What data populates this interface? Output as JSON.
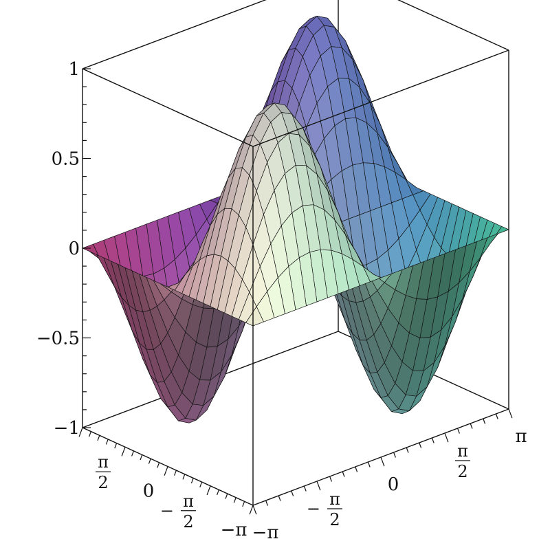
{
  "chart_data": {
    "type": "surface3d",
    "function": "z = sin(x) * sin(y)",
    "x_range": [
      -3.14159,
      3.14159
    ],
    "y_range": [
      -3.14159,
      3.14159
    ],
    "zlim": [
      -1,
      1
    ],
    "grid_x": 24,
    "grid_y": 24,
    "z_ticks": [
      {
        "value": 1,
        "label": "1"
      },
      {
        "value": 0.5,
        "label": "0.5"
      },
      {
        "value": 0,
        "label": "0"
      },
      {
        "value": -0.5,
        "label": "−0.5"
      },
      {
        "value": -1,
        "label": "−1"
      }
    ],
    "x_ticks": [
      {
        "value": -3.14159,
        "label": "−π"
      },
      {
        "value": -1.5708,
        "label": "π/2",
        "sign": "−"
      },
      {
        "value": 0,
        "label": "0"
      },
      {
        "value": 1.5708,
        "label": "π/2"
      },
      {
        "value": 3.14159,
        "label": "π"
      }
    ],
    "y_ticks": [
      {
        "value": -3.14159,
        "label": "−π"
      },
      {
        "value": -1.5708,
        "label": "π/2",
        "sign": "−"
      },
      {
        "value": 0,
        "label": "0"
      },
      {
        "value": 1.5708,
        "label": "π/2"
      }
    ],
    "colors": {
      "corner_neg_x_pos_y": "#b23c78",
      "corner_pos_x_pos_y": "#4d4ad8",
      "corner_neg_x_neg_y": "#f2f2d6",
      "corner_pos_x_neg_y": "#48c9a0",
      "mesh": "#141414"
    },
    "grid": false,
    "legend": "none"
  }
}
